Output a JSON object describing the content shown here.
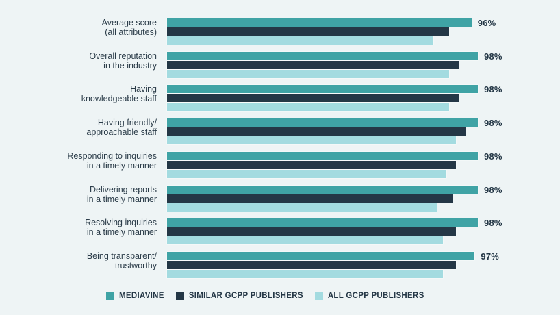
{
  "chart_data": {
    "type": "bar",
    "orientation": "horizontal",
    "title": "",
    "xlabel": "",
    "ylabel": "",
    "xlim": [
      0,
      100
    ],
    "grid": false,
    "legend_position": "bottom",
    "categories": [
      "Average score\n(all attributes)",
      "Overall reputation\nin the industry",
      "Having\nknowledgeable staff",
      "Having friendly/\napproachable staff",
      "Responding to inquiries\nin a timely manner",
      "Delivering reports\nin a timely manner",
      "Resolving inquiries\nin a timely manner",
      "Being transparent/\ntrustworthy"
    ],
    "series": [
      {
        "name": "MEDIAVINE",
        "color": "#3fa3a5",
        "values": [
          96,
          98,
          98,
          98,
          98,
          98,
          98,
          97
        ]
      },
      {
        "name": "SIMILAR GCPP PUBLISHERS",
        "color": "#243746",
        "values": [
          89,
          92,
          92,
          94,
          91,
          90,
          91,
          91
        ]
      },
      {
        "name": "ALL GCPP PUBLISHERS",
        "color": "#a3dbe0",
        "values": [
          84,
          89,
          89,
          91,
          88,
          85,
          87,
          87
        ]
      }
    ],
    "data_labels": [
      "96%",
      "98%",
      "98%",
      "98%",
      "98%",
      "98%",
      "98%",
      "97%"
    ]
  },
  "legend": {
    "items": [
      {
        "label": "MEDIAVINE",
        "color": "#3fa3a5"
      },
      {
        "label": "SIMILAR GCPP PUBLISHERS",
        "color": "#243746"
      },
      {
        "label": "ALL GCPP PUBLISHERS",
        "color": "#a3dbe0"
      }
    ]
  },
  "colors": {
    "background": "#eef4f5",
    "text": "#243746"
  }
}
